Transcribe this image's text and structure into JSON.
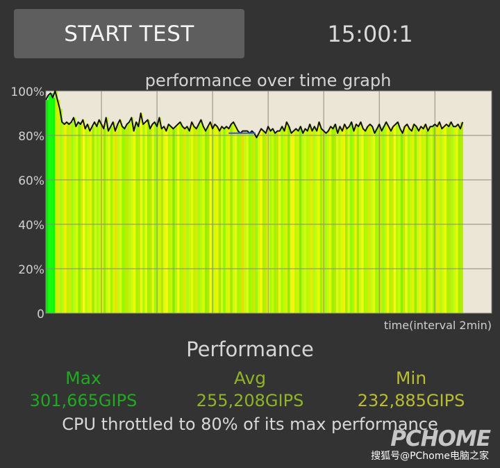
{
  "header": {
    "start_button_label": "START TEST",
    "timer": "15:00:1"
  },
  "graph": {
    "title": "performance over time graph",
    "xlabel": "time(interval 2min)"
  },
  "chart_data": {
    "type": "area",
    "title": "performance over time graph",
    "xlabel": "time(interval 2min)",
    "ylabel": "",
    "y_tick_labels": [
      "100%",
      "80%",
      "60%",
      "40%",
      "20%",
      "0"
    ],
    "ylim": [
      0,
      100
    ],
    "x_grid_interval_min": 2,
    "x_total_min": 15,
    "grid": true,
    "series": [
      {
        "line_color": "#111111",
        "values": [
          96,
          98,
          99,
          97,
          100,
          96,
          92,
          86,
          85,
          86,
          85,
          86,
          88,
          84,
          86,
          85,
          87,
          83,
          85,
          82,
          84,
          86,
          84,
          87,
          85,
          83,
          88,
          82,
          84,
          86,
          82,
          85,
          87,
          84,
          83,
          85,
          86,
          88,
          82,
          86,
          84,
          90,
          85,
          86,
          87,
          83,
          85,
          86,
          84,
          88,
          83,
          84,
          82,
          85,
          84,
          83,
          84,
          85,
          86,
          84,
          83,
          84,
          82,
          86,
          84,
          83,
          85,
          87,
          84,
          82,
          84,
          86,
          83,
          85,
          84,
          82,
          84,
          83,
          84,
          83,
          85,
          86,
          84,
          82,
          81,
          82,
          82,
          82,
          81,
          82,
          81,
          79,
          81,
          83,
          82,
          81,
          84,
          82,
          83,
          81,
          82,
          82,
          84,
          82,
          86,
          84,
          81,
          82,
          83,
          82,
          84,
          81,
          83,
          82,
          85,
          82,
          84,
          82,
          86,
          83,
          82,
          81,
          82,
          84,
          83,
          85,
          81,
          84,
          82,
          85,
          83,
          84,
          86,
          82,
          85,
          84,
          86,
          83,
          82,
          84,
          85,
          84,
          81,
          83,
          85,
          82,
          84,
          86,
          84,
          82,
          84,
          85,
          86,
          83,
          81,
          84,
          85,
          83,
          82,
          85,
          84,
          82,
          84,
          83,
          85,
          82,
          84,
          84,
          85,
          84,
          86,
          83,
          84,
          85,
          84,
          86,
          84,
          84,
          85,
          83,
          86
        ]
      },
      {
        "line_color": "#3355ee",
        "segment": "highlight",
        "values": [
          81,
          81,
          81,
          81
        ]
      }
    ],
    "annotations": []
  },
  "performance": {
    "title": "Performance",
    "max": {
      "label": "Max",
      "value": "301,665GIPS",
      "color": "#1faa1f"
    },
    "avg": {
      "label": "Avg",
      "value": "255,208GIPS",
      "color": "#8fb428"
    },
    "min": {
      "label": "Min",
      "value": "232,885GIPS",
      "color": "#b9bd32"
    },
    "throttle_text": "CPU throttled to 80% of its max performance"
  },
  "watermark": {
    "logo": "PCHOME",
    "text": "搜狐号@PChome电脑之家"
  },
  "colors": {
    "background": "#333333",
    "button": "#5e5e5e",
    "plot_background": "#ebe6d6"
  }
}
